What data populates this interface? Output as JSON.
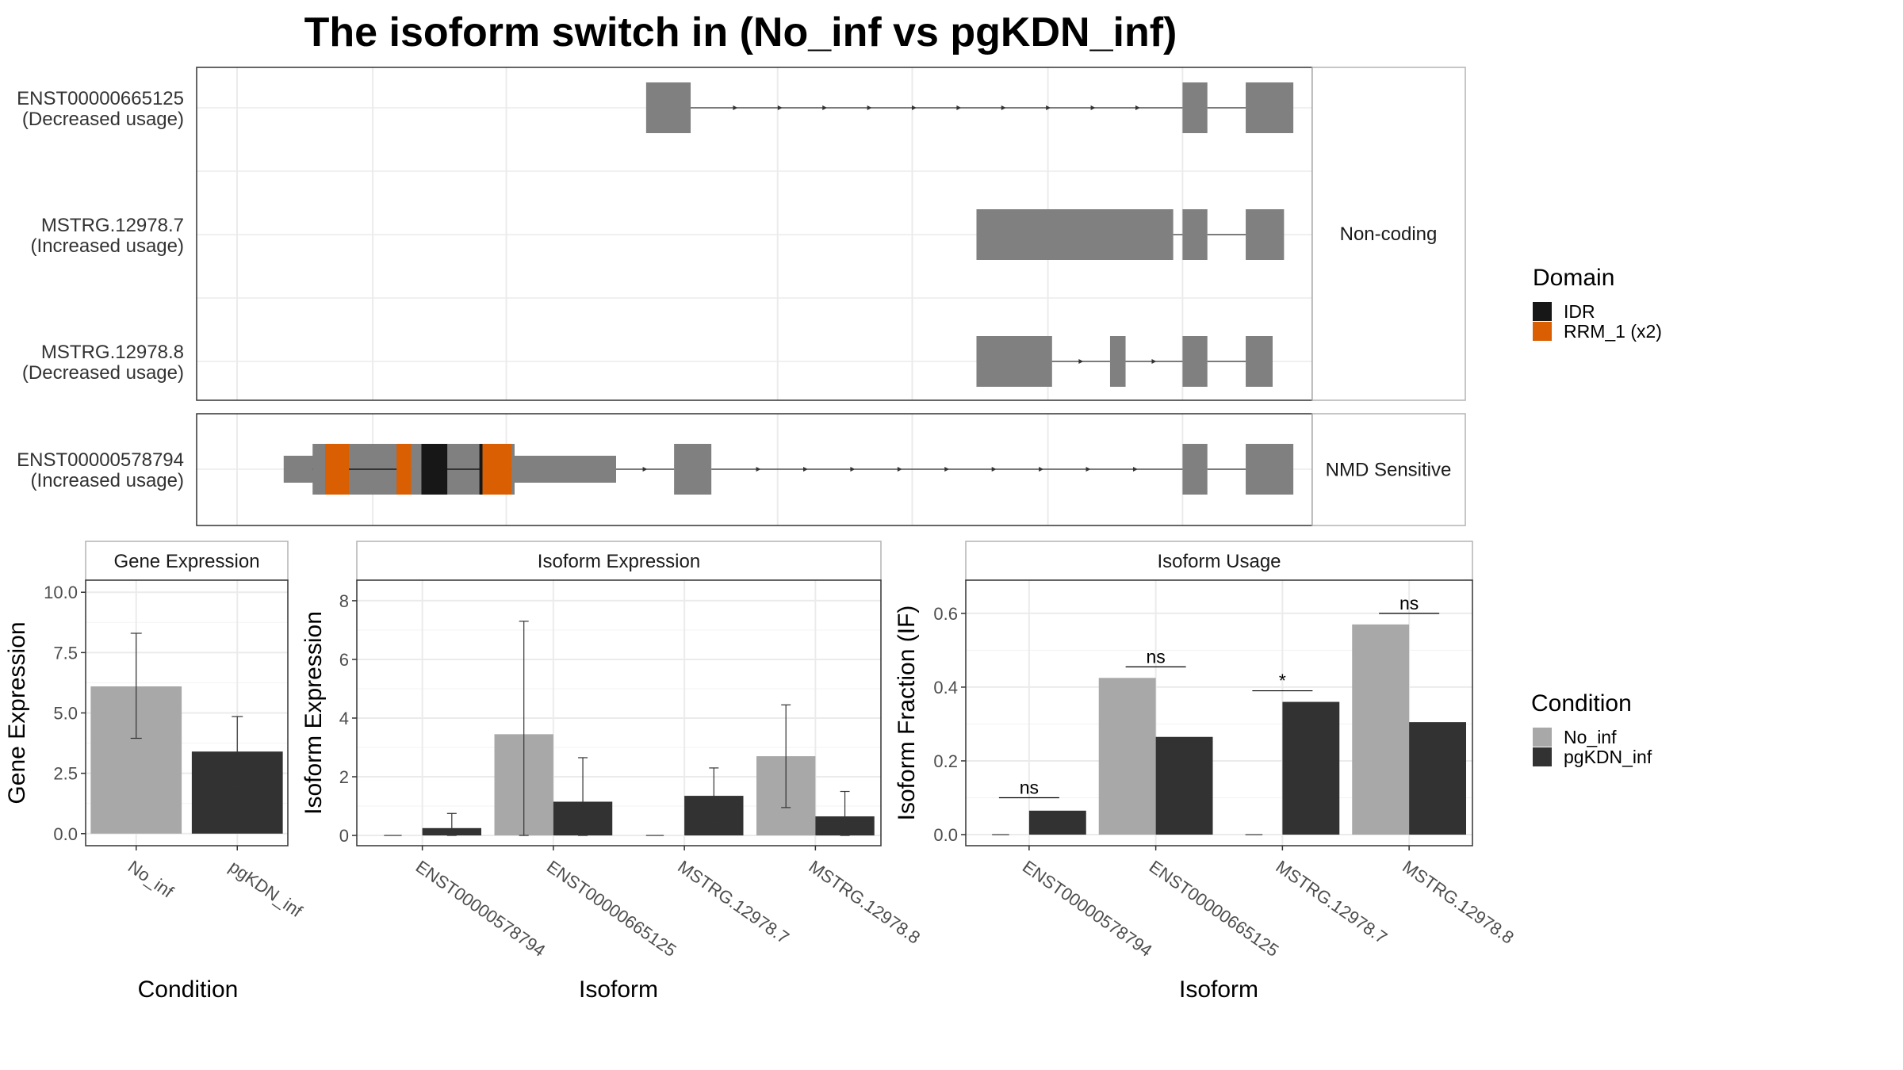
{
  "title": "The isoform switch in  (No_inf vs pgKDN_inf)",
  "colors": {
    "No_inf": "#a8a8a8",
    "pgKDN_inf": "#323232",
    "exon": "#808080",
    "IDR": "#171717",
    "RRM_1 (x2)": "#d95f02",
    "grid": "#ebebeb",
    "strip_bg": "#ffffff"
  },
  "chart_data": [
    {
      "type": "gene-structure",
      "panels": [
        {
          "strip": "Non-coding",
          "isoforms": [
            {
              "id": "ENST00000665125",
              "usage": "(Decreased usage)",
              "exons": [
                [
                  0.395,
                  0.438
                ],
                [
                  0.913,
                  0.937
                ],
                [
                  0.974,
                  1.02
                ]
              ],
              "domains": []
            },
            {
              "id": "MSTRG.12978.7",
              "usage": "(Increased usage)",
              "exons": [
                [
                  0.714,
                  0.904
                ],
                [
                  0.913,
                  0.937
                ],
                [
                  0.974,
                  1.011
                ]
              ],
              "domains": []
            },
            {
              "id": "MSTRG.12978.8",
              "usage": "(Decreased usage)",
              "exons": [
                [
                  0.714,
                  0.787
                ],
                [
                  0.843,
                  0.858
                ],
                [
                  0.913,
                  0.937
                ],
                [
                  0.974,
                  1.0
                ]
              ],
              "domains": []
            }
          ]
        },
        {
          "strip": "NMD Sensitive",
          "isoforms": [
            {
              "id": "ENST00000578794",
              "usage": "(Increased usage)",
              "exons": [
                [
                  0.045,
                  0.366
                ],
                [
                  0.422,
                  0.458
                ],
                [
                  0.913,
                  0.937
                ],
                [
                  0.974,
                  1.02
                ]
              ],
              "utr": [
                [
                  0.045,
                  0.073
                ],
                [
                  0.268,
                  0.366
                ]
              ],
              "domains": [
                {
                  "name": "RRM_1 (x2)",
                  "range": [
                    0.085,
                    0.108
                  ]
                },
                {
                  "name": "RRM_1 (x2)",
                  "range": [
                    0.154,
                    0.168
                  ]
                },
                {
                  "name": "IDR",
                  "range": [
                    0.178,
                    0.203
                  ]
                },
                {
                  "name": "IDR",
                  "range": [
                    0.234,
                    0.237
                  ]
                },
                {
                  "name": "RRM_1 (x2)",
                  "range": [
                    0.237,
                    0.265
                  ]
                }
              ]
            }
          ]
        }
      ],
      "legend": {
        "title": "Domain",
        "entries": [
          "IDR",
          "RRM_1 (x2)"
        ]
      }
    },
    {
      "type": "bar",
      "strip": "Gene Expression",
      "xlabel": "Condition",
      "ylabel": "Gene Expression",
      "categories": [
        "No_inf",
        "pgKDN_inf"
      ],
      "values": [
        6.1,
        3.4
      ],
      "errors": [
        [
          3.95,
          8.3
        ],
        [
          1.95,
          4.85
        ]
      ],
      "ylim": [
        -0.5,
        10.5
      ],
      "yticks": [
        "0.0",
        "2.5",
        "5.0",
        "7.5",
        "10.0"
      ]
    },
    {
      "type": "bar",
      "strip": "Isoform Expression",
      "xlabel": "Isoform",
      "ylabel": "Isoform Expression",
      "categories": [
        "ENST00000578794",
        "ENST00000665125",
        "MSTRG.12978.7",
        "MSTRG.12978.8"
      ],
      "series": [
        {
          "name": "No_inf",
          "values": [
            0.0,
            3.45,
            0.0,
            2.7
          ],
          "errors": [
            [
              0.0,
              0.0
            ],
            [
              0.0,
              7.3
            ],
            [
              0.0,
              0.0
            ],
            [
              0.95,
              4.45
            ]
          ]
        },
        {
          "name": "pgKDN_inf",
          "values": [
            0.25,
            1.15,
            1.35,
            0.65
          ],
          "errors": [
            [
              0.0,
              0.75
            ],
            [
              0.0,
              2.65
            ],
            [
              0.45,
              2.3
            ],
            [
              0.0,
              1.5
            ]
          ]
        }
      ],
      "ylim": [
        -0.35,
        8.7
      ],
      "yticks": [
        "0",
        "2",
        "4",
        "6",
        "8"
      ]
    },
    {
      "type": "bar",
      "strip": "Isoform Usage",
      "xlabel": "Isoform",
      "ylabel": "Isoform Fraction (IF)",
      "categories": [
        "ENST00000578794",
        "ENST00000665125",
        "MSTRG.12978.7",
        "MSTRG.12978.8"
      ],
      "series": [
        {
          "name": "No_inf",
          "values": [
            0.0,
            0.425,
            0.0,
            0.57
          ]
        },
        {
          "name": "pgKDN_inf",
          "values": [
            0.065,
            0.265,
            0.36,
            0.305
          ]
        }
      ],
      "significance": [
        {
          "label": "ns",
          "y": 0.1
        },
        {
          "label": "ns",
          "y": 0.455
        },
        {
          "label": "*",
          "y": 0.39
        },
        {
          "label": "ns",
          "y": 0.6
        }
      ],
      "ylim": [
        -0.03,
        0.69
      ],
      "yticks": [
        "0.0",
        "0.2",
        "0.4",
        "0.6"
      ]
    }
  ],
  "legend_condition": {
    "title": "Condition",
    "entries": [
      "No_inf",
      "pgKDN_inf"
    ]
  }
}
